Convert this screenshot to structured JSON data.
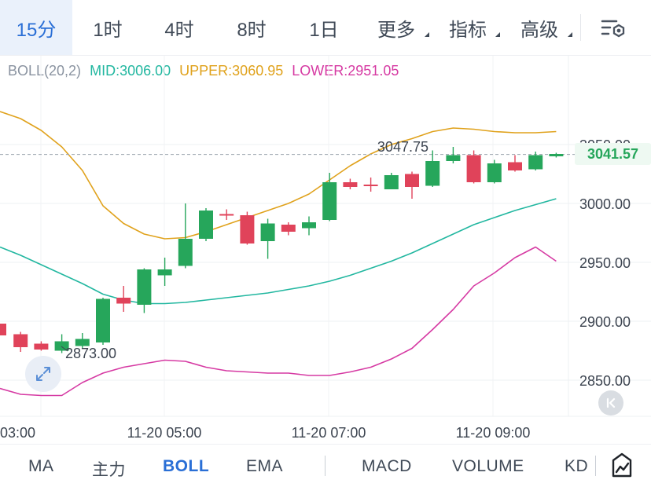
{
  "period_tabs": [
    {
      "label": "15分",
      "active": true,
      "dropdown": false
    },
    {
      "label": "1时",
      "active": false,
      "dropdown": false
    },
    {
      "label": "4时",
      "active": false,
      "dropdown": false
    },
    {
      "label": "8时",
      "active": false,
      "dropdown": false
    },
    {
      "label": "1日",
      "active": false,
      "dropdown": false
    },
    {
      "label": "更多",
      "active": false,
      "dropdown": true
    },
    {
      "label": "指标",
      "active": false,
      "dropdown": true
    },
    {
      "label": "高级",
      "active": false,
      "dropdown": true
    }
  ],
  "toolbar_icons": {
    "settings": "chart-settings-icon",
    "expand": "expand-arrows-icon",
    "back": "jump-to-latest-icon",
    "draw": "drawing-tool-icon"
  },
  "boll": {
    "name": "BOLL(20,2)",
    "mid": "MID:3006.00",
    "upper": "UPPER:3060.95",
    "lower": "LOWER:2951.05"
  },
  "current_price": "3041.57",
  "colors": {
    "up": "#26a65b",
    "down": "#e0435a",
    "mid": "#22b7a0",
    "upper": "#e0a21c",
    "lower": "#d63aa3",
    "accent": "#2a6fd6"
  },
  "chart_data": {
    "type": "candlestick",
    "y_ticks": [
      "2850.00",
      "2900.00",
      "2950.00",
      "3000.00",
      "3050.00"
    ],
    "x_ticks": [
      "03:00",
      "11-20 05:00",
      "11-20 07:00",
      "11-20 09:00"
    ],
    "annotations": {
      "high": "3047.75",
      "low": "2873.00"
    },
    "ylim": [
      2830,
      3090
    ],
    "candles": [
      {
        "o": 2898,
        "h": 2905,
        "l": 2885,
        "c": 2888
      },
      {
        "o": 2889,
        "h": 2891,
        "l": 2874,
        "c": 2878
      },
      {
        "o": 2881,
        "h": 2883,
        "l": 2875,
        "c": 2876
      },
      {
        "o": 2875,
        "h": 2889,
        "l": 2873,
        "c": 2883
      },
      {
        "o": 2879,
        "h": 2890,
        "l": 2877,
        "c": 2885
      },
      {
        "o": 2882,
        "h": 2920,
        "l": 2880,
        "c": 2919
      },
      {
        "o": 2920,
        "h": 2930,
        "l": 2908,
        "c": 2915
      },
      {
        "o": 2914,
        "h": 2945,
        "l": 2907,
        "c": 2944
      },
      {
        "o": 2939,
        "h": 2954,
        "l": 2930,
        "c": 2944
      },
      {
        "o": 2947,
        "h": 3000,
        "l": 2945,
        "c": 2970
      },
      {
        "o": 2970,
        "h": 2996,
        "l": 2968,
        "c": 2994
      },
      {
        "o": 2991,
        "h": 2995,
        "l": 2986,
        "c": 2990
      },
      {
        "o": 2990,
        "h": 2993,
        "l": 2965,
        "c": 2966
      },
      {
        "o": 2968,
        "h": 2987,
        "l": 2953,
        "c": 2983
      },
      {
        "o": 2982,
        "h": 2984,
        "l": 2973,
        "c": 2976
      },
      {
        "o": 2979,
        "h": 2989,
        "l": 2973,
        "c": 2984
      },
      {
        "o": 2986,
        "h": 3026,
        "l": 2985,
        "c": 3018
      },
      {
        "o": 3018,
        "h": 3021,
        "l": 3012,
        "c": 3014
      },
      {
        "o": 3016,
        "h": 3022,
        "l": 3010,
        "c": 3015
      },
      {
        "o": 3012,
        "h": 3026,
        "l": 3012,
        "c": 3024
      },
      {
        "o": 3025,
        "h": 3027,
        "l": 3004,
        "c": 3014
      },
      {
        "o": 3015,
        "h": 3045,
        "l": 3014,
        "c": 3036
      },
      {
        "o": 3036,
        "h": 3048,
        "l": 3034,
        "c": 3041
      },
      {
        "o": 3041,
        "h": 3045,
        "l": 3017,
        "c": 3018
      },
      {
        "o": 3018,
        "h": 3037,
        "l": 3017,
        "c": 3034
      },
      {
        "o": 3035,
        "h": 3041,
        "l": 3027,
        "c": 3028
      },
      {
        "o": 3029,
        "h": 3044,
        "l": 3028,
        "c": 3041
      },
      {
        "o": 3040,
        "h": 3043,
        "l": 3039,
        "c": 3042
      }
    ],
    "series": [
      {
        "key": "upper",
        "values": [
          3078,
          3072,
          3062,
          3048,
          3028,
          2998,
          2983,
          2974,
          2970,
          2971,
          2976,
          2982,
          2988,
          2994,
          3000,
          3008,
          3020,
          3032,
          3042,
          3050,
          3055,
          3061,
          3064,
          3063,
          3061,
          3060,
          3060,
          3061
        ]
      },
      {
        "key": "mid",
        "values": [
          2963,
          2956,
          2948,
          2940,
          2932,
          2923,
          2918,
          2915,
          2915,
          2916,
          2918,
          2920,
          2922,
          2924,
          2927,
          2930,
          2934,
          2939,
          2945,
          2951,
          2958,
          2966,
          2974,
          2982,
          2988,
          2994,
          2999,
          3004
        ]
      },
      {
        "key": "lower",
        "values": [
          2843,
          2838,
          2837,
          2837,
          2848,
          2856,
          2861,
          2864,
          2867,
          2866,
          2861,
          2858,
          2857,
          2856,
          2856,
          2854,
          2854,
          2857,
          2861,
          2868,
          2877,
          2893,
          2910,
          2930,
          2941,
          2954,
          2963,
          2951
        ]
      }
    ]
  },
  "indicators": [
    {
      "label": "MA",
      "active": false
    },
    {
      "label": "主力",
      "active": false
    },
    {
      "label": "BOLL",
      "active": true
    },
    {
      "label": "EMA",
      "active": false
    },
    {
      "label": "MACD",
      "active": false
    },
    {
      "label": "VOLUME",
      "active": false
    },
    {
      "label": "KD",
      "active": false
    }
  ]
}
